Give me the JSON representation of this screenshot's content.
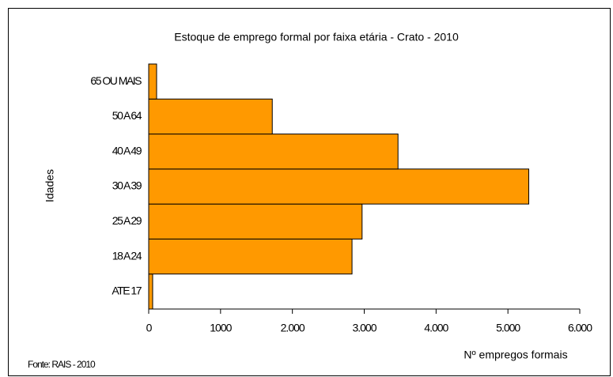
{
  "chart_data": {
    "type": "barh",
    "title": "Estoque de emprego formal por faixa etária - Crato - 2010",
    "x_label": "Nº empregos formais",
    "y_label": "Idades",
    "source": "Fonte: RAIS - 2010",
    "categories": [
      "ATE 17",
      "18 A 24",
      "25 A 29",
      "30 A 39",
      "40 A 49",
      "50 A 64",
      "65 OU MAIS"
    ],
    "values": [
      55,
      2830,
      2970,
      5290,
      3470,
      1720,
      110
    ],
    "color": "#ff9900",
    "xlim": [
      0,
      6000
    ],
    "xticks": [
      0,
      1000,
      {
        "value": 2000,
        "label": "2.000"
      },
      {
        "value": 3000,
        "label": "3.000"
      },
      {
        "value": 4000,
        "label": "4.000"
      },
      {
        "value": 5000,
        "label": "5.000"
      },
      {
        "value": 6000,
        "label": "6.000"
      }
    ],
    "grid": false
  }
}
